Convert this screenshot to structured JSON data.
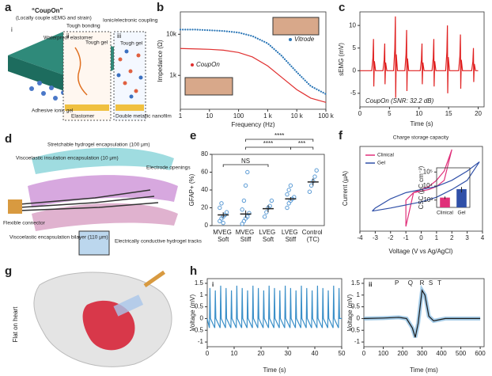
{
  "illustrations": {
    "a": {
      "label": "a",
      "title": "“CoupOn”",
      "subtitle": "(Locally couple sEMG and strain)",
      "i": "i",
      "ii": "ii",
      "iii": "iii",
      "bonding": "Tough bonding",
      "coupling": "Ionic/electronic coupling",
      "elastomer": "Waterproof elastomer",
      "gel": "Adhesive ionic gel",
      "tough": "Tough gel",
      "tough2": "Tough gel",
      "metal": "Double metallic nanofilm",
      "base": "Elastomer"
    },
    "d": {
      "label": "d",
      "insulation": "Viscoelastic insulation encapsulation (10 μm)",
      "hydrogel": "Stretchable hydrogel encapsulation (100 μm)",
      "openings": "Electrode openings",
      "connector": "Flexible connector",
      "bilayer": "Viscoelastic encapsulation bilayer (110 μm)",
      "tracks": "Electrically conductive hydrogel tracks"
    },
    "g": {
      "label": "g",
      "caption": "Flat on heart"
    }
  },
  "chart_data": [
    {
      "type": "line",
      "label": "b",
      "xlabel": "Frequency (Hz)",
      "ylabel": "Impedance (Ω)",
      "xlog": true,
      "ylog": true,
      "xlim": [
        1,
        100000
      ],
      "ylim": [
        150,
        35000
      ],
      "xticks": [
        1,
        10,
        100,
        {
          "value": 1000,
          "label": "1 k"
        },
        {
          "value": 10000,
          "label": "10 k"
        },
        {
          "value": 100000,
          "label": "100 k"
        }
      ],
      "yticks": [
        {
          "value": 1000,
          "label": "1k"
        },
        {
          "value": 10000,
          "label": "10k"
        }
      ],
      "x": [
        1,
        3,
        10,
        30,
        100,
        300,
        1000,
        3000,
        10000,
        30000,
        100000
      ],
      "series": [
        {
          "name": "Vitrode",
          "color": "#2e78b7",
          "style": "dotted",
          "values": [
            13000,
            13000,
            12500,
            12000,
            11000,
            9000,
            6000,
            3000,
            1200,
            550,
            350
          ]
        },
        {
          "name": "CoupOn",
          "color": "#e03030",
          "style": "solid",
          "values": [
            4500,
            4400,
            4300,
            4100,
            3600,
            2800,
            1700,
            900,
            450,
            280,
            220
          ]
        }
      ]
    },
    {
      "type": "line",
      "label": "c",
      "xlabel": "Time (s)",
      "ylabel": "sEMG (mV)",
      "annotation": "CoupOn (SNR: 32.2 dB)",
      "xlim": [
        0,
        21
      ],
      "ylim": [
        -8,
        13
      ],
      "xticks": [
        0,
        5,
        10,
        15,
        20
      ],
      "yticks": [
        -5,
        0,
        5,
        10
      ],
      "x": [
        0,
        2.0,
        2.2,
        2.3,
        2.35,
        2.45,
        2.65,
        3.9,
        4.1,
        4.2,
        4.25,
        4.35,
        4.55,
        5.7,
        5.9,
        6.0,
        6.05,
        6.15,
        6.35,
        7.6,
        7.8,
        7.9,
        7.95,
        8.05,
        8.25,
        10.2,
        10.4,
        10.5,
        10.55,
        10.65,
        10.85,
        12.2,
        12.4,
        12.5,
        12.55,
        12.65,
        12.85,
        14.5,
        14.7,
        14.8,
        14.85,
        14.95,
        15.15,
        16.7,
        16.9,
        17.0,
        17.05,
        17.15,
        17.35,
        18.9,
        19.1,
        19.2,
        19.25,
        19.35,
        19.55,
        20
      ],
      "series": [
        {
          "color": "#e02020",
          "values": [
            0,
            0,
            2.8,
            7,
            -3.5,
            2.1,
            0,
            0,
            2.4,
            6,
            -3,
            1.8,
            0,
            0,
            4.8,
            12,
            -6,
            3.6,
            0,
            0,
            3.6,
            9,
            -4.5,
            2.7,
            0,
            0,
            2.4,
            6,
            -3,
            1.8,
            0,
            0,
            2.8,
            7,
            -3.5,
            2.1,
            0,
            0,
            4,
            10,
            -5,
            3,
            0,
            0,
            3.2,
            8,
            -4,
            2.4,
            0,
            0,
            2,
            5,
            -2.5,
            1.5,
            0,
            0
          ]
        }
      ]
    },
    {
      "type": "dot",
      "label": "e",
      "ylabel": "GFAP+ (%)",
      "ylim": [
        0,
        80
      ],
      "yticks": [
        0,
        20,
        40,
        60,
        80
      ],
      "color": "#5b9bd5",
      "categories": [
        "MVEG Soft",
        "MVEG Stiff",
        "LVEG Soft",
        "LVEG Stiff",
        "Control (TC)"
      ],
      "values": [
        12,
        13,
        19,
        30,
        49
      ],
      "errors": [
        3,
        4,
        4,
        2,
        4
      ],
      "points": [
        [
          5,
          8,
          10,
          12,
          15,
          20,
          25,
          3
        ],
        [
          2,
          5,
          8,
          10,
          14,
          18,
          28,
          45,
          60
        ],
        [
          10,
          15,
          20,
          22,
          28
        ],
        [
          20,
          25,
          28,
          30,
          32,
          35,
          40,
          45
        ],
        [
          38,
          45,
          50,
          55,
          62
        ]
      ],
      "annotations": [
        "****",
        "****",
        "***",
        "NS"
      ]
    },
    {
      "type": "line",
      "label": "f",
      "title": "Charge storage capacity",
      "xlabel": "Voltage (V vs Ag/AgCl)",
      "ylabel": "Current (μA)",
      "xlim": [
        -4,
        4
      ],
      "ylim": [
        -25,
        30
      ],
      "xticks": [
        -4,
        -3,
        -2,
        -1,
        0,
        1,
        2,
        3,
        4
      ],
      "legend": "upper-left",
      "series": [
        {
          "name": "Clinical",
          "color": "#e0307a",
          "x": [
            -1,
            -1,
            -0.5,
            0,
            0.5,
            1,
            1.5,
            2,
            1.5,
            1,
            0.5,
            0,
            -0.5,
            -1
          ],
          "values": [
            -22,
            -5,
            0,
            1,
            2,
            4,
            8,
            28,
            14,
            8,
            4,
            2,
            0,
            -22
          ]
        },
        {
          "name": "Gel",
          "color": "#3050a8",
          "x": [
            -3.2,
            -2,
            -1,
            0,
            1,
            2,
            3,
            3.8,
            3,
            2,
            1,
            0,
            -1,
            -2,
            -3,
            -3.2
          ],
          "values": [
            -12,
            -10,
            -8,
            -6,
            -3,
            2,
            8,
            20,
            14,
            8,
            4,
            2,
            0,
            -4,
            -10,
            -12
          ]
        }
      ]
    },
    {
      "type": "bar",
      "ylabel": "CSC (μC cm⁻²)",
      "ylog": true,
      "ylim": [
        300,
        200000
      ],
      "yticks": [
        {
          "value": 1000,
          "label": "10³"
        },
        {
          "value": 10000,
          "label": "10⁴"
        },
        {
          "value": 100000,
          "label": "10⁵"
        }
      ],
      "categories": [
        "Clinical",
        "Gel"
      ],
      "values": [
        1500,
        6000
      ],
      "errors": [
        300,
        2500
      ],
      "colors": [
        "#e0307a",
        "#3050a8"
      ]
    },
    {
      "type": "line",
      "label": "h",
      "sublabel": "i",
      "xlabel": "Time (s)",
      "ylabel": "Voltage (mV)",
      "xlim": [
        0,
        50
      ],
      "ylim": [
        -1.2,
        1.7
      ],
      "xticks": [
        0,
        10,
        20,
        30,
        40,
        50
      ],
      "yticks": [
        -1,
        -0.5,
        0,
        0.5,
        1,
        1.5
      ],
      "x": [
        0,
        0.8,
        1,
        1.2,
        2.8,
        3,
        3.2,
        4.8,
        5,
        5.2,
        6.8,
        7,
        7.2,
        8.8,
        9,
        9.2,
        10.8,
        11,
        11.2,
        12.8,
        13,
        13.2,
        14.8,
        15,
        15.2,
        16.8,
        17,
        17.2,
        18.8,
        19,
        19.2,
        20.8,
        21,
        21.2,
        22.8,
        23,
        23.2,
        24.8,
        25,
        25.2,
        26.8,
        27,
        27.2,
        28.8,
        29,
        29.2,
        30.8,
        31,
        31.2,
        32.8,
        33,
        33.2,
        34.8,
        35,
        35.2,
        36.8,
        37,
        37.2,
        38.8,
        39,
        39.2,
        40.8,
        41,
        41.2,
        42.8,
        43,
        43.2,
        44.8,
        45,
        45.2,
        46.8,
        47,
        47.2,
        48.8,
        49,
        49.2,
        50
      ],
      "series": [
        {
          "color": "#3a8fc8",
          "values": [
            0,
            -0.4,
            1.3,
            0,
            -0.4,
            1.2,
            0,
            -0.4,
            1.4,
            0,
            -0.4,
            1.3,
            0,
            -0.4,
            1.2,
            0,
            -0.4,
            1.4,
            0,
            -0.4,
            1.3,
            0,
            -0.4,
            1.2,
            0,
            -0.4,
            1.4,
            0,
            -0.4,
            1.3,
            0,
            -0.4,
            1.2,
            0,
            -0.4,
            1.4,
            0,
            -0.4,
            1.3,
            0,
            -0.4,
            1.2,
            0,
            -0.4,
            1.4,
            0,
            -0.4,
            1.3,
            0,
            -0.4,
            1.2,
            0,
            -0.4,
            1.4,
            0,
            -0.4,
            1.3,
            0,
            -0.4,
            1.2,
            0,
            -0.4,
            1.4,
            0,
            -0.4,
            1.3,
            0,
            -0.4,
            1.2,
            0,
            -0.4,
            1.4,
            0,
            -0.4,
            1.3,
            0,
            0
          ]
        }
      ]
    },
    {
      "type": "line",
      "sublabel": "ii",
      "xlabel": "Time (ms)",
      "ylabel": "Voltage (mV)",
      "xlim": [
        0,
        620
      ],
      "ylim": [
        -1.2,
        1.7
      ],
      "xticks": [
        0,
        100,
        200,
        300,
        400,
        500,
        600
      ],
      "yticks": [
        -1,
        -0.5,
        0,
        0.5,
        1,
        1.5
      ],
      "peaks": [
        {
          "label": "P",
          "x": 170
        },
        {
          "label": "Q",
          "x": 240
        },
        {
          "label": "R",
          "x": 300
        },
        {
          "label": "S",
          "x": 345
        },
        {
          "label": "T",
          "x": 390
        }
      ],
      "x": [
        0,
        100,
        180,
        220,
        250,
        265,
        280,
        300,
        315,
        335,
        360,
        420,
        500,
        600
      ],
      "series": [
        {
          "color": "#1a1a1a",
          "band": "#7fb6de",
          "values": [
            0,
            0.02,
            0.05,
            0,
            -0.4,
            -0.8,
            -0.2,
            1.2,
            1.0,
            0.1,
            -0.1,
            0,
            0,
            0
          ]
        }
      ]
    }
  ]
}
